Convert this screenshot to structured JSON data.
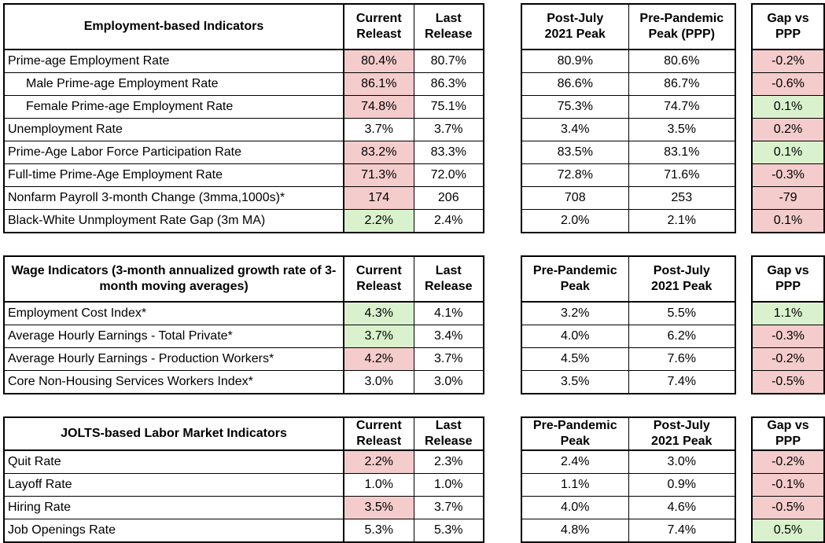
{
  "colors": {
    "worse_bg": "#f4cccc",
    "better_bg": "#d9f2cd",
    "border": "#000000"
  },
  "chart_data": [
    {
      "type": "table",
      "title": "Employment-based Indicators",
      "main_headers": [
        "Current\nReleast",
        "Last\nRelease"
      ],
      "peak_headers": [
        "Post-July\n2021 Peak",
        "Pre-Pandemic\nPeak (PPP)"
      ],
      "gap_header": "Gap vs\nPPP",
      "rows": [
        {
          "label": "Prime-age Employment Rate",
          "indent": false,
          "current": "80.4%",
          "current_bg": "red",
          "last": "80.7%",
          "peak1": "80.9%",
          "peak2": "80.6%",
          "gap": "-0.2%",
          "gap_bg": "red"
        },
        {
          "label": "Male Prime-age Employment Rate",
          "indent": true,
          "current": "86.1%",
          "current_bg": "red",
          "last": "86.3%",
          "peak1": "86.6%",
          "peak2": "86.7%",
          "gap": "-0.6%",
          "gap_bg": "red"
        },
        {
          "label": "Female Prime-age Employment Rate",
          "indent": true,
          "current": "74.8%",
          "current_bg": "red",
          "last": "75.1%",
          "peak1": "75.3%",
          "peak2": "74.7%",
          "gap": "0.1%",
          "gap_bg": "green"
        },
        {
          "label": "Unemployment Rate",
          "indent": false,
          "current": "3.7%",
          "current_bg": null,
          "last": "3.7%",
          "peak1": "3.4%",
          "peak2": "3.5%",
          "gap": "0.2%",
          "gap_bg": "red"
        },
        {
          "label": "Prime-Age Labor Force Participation Rate",
          "indent": false,
          "current": "83.2%",
          "current_bg": "red",
          "last": "83.3%",
          "peak1": "83.5%",
          "peak2": "83.1%",
          "gap": "0.1%",
          "gap_bg": "green"
        },
        {
          "label": "Full-time Prime-Age Employment Rate",
          "indent": false,
          "current": "71.3%",
          "current_bg": "red",
          "last": "72.0%",
          "peak1": "72.8%",
          "peak2": "71.6%",
          "gap": "-0.3%",
          "gap_bg": "red"
        },
        {
          "label": "Nonfarm Payroll 3-month Change (3mma,1000s)*",
          "indent": false,
          "current": "174",
          "current_bg": "red",
          "last": "206",
          "peak1": "708",
          "peak2": "253",
          "gap": "-79",
          "gap_bg": "red"
        },
        {
          "label": "Black-White Unmployment Rate Gap (3m MA)",
          "indent": false,
          "current": "2.2%",
          "current_bg": "green",
          "last": "2.4%",
          "peak1": "2.0%",
          "peak2": "2.1%",
          "gap": "0.1%",
          "gap_bg": "red"
        }
      ]
    },
    {
      "type": "table",
      "title": "Wage Indicators (3-month annualized growth rate of 3-month moving averages)",
      "main_headers": [
        "Current\nReleast",
        "Last\nRelease"
      ],
      "peak_headers": [
        "Pre-Pandemic\nPeak",
        "Post-July\n2021 Peak"
      ],
      "gap_header": "Gap vs\nPPP",
      "rows": [
        {
          "label": "Employment Cost Index*",
          "indent": false,
          "current": "4.3%",
          "current_bg": "green",
          "last": "4.1%",
          "peak1": "3.2%",
          "peak2": "5.5%",
          "gap": "1.1%",
          "gap_bg": "green"
        },
        {
          "label": "Average Hourly Earnings - Total Private*",
          "indent": false,
          "current": "3.7%",
          "current_bg": "green",
          "last": "3.4%",
          "peak1": "4.0%",
          "peak2": "6.2%",
          "gap": "-0.3%",
          "gap_bg": "red"
        },
        {
          "label": "Average Hourly Earnings - Production Workers*",
          "indent": false,
          "current": "4.2%",
          "current_bg": "red",
          "last": "3.7%",
          "peak1": "4.5%",
          "peak2": "7.6%",
          "gap": "-0.2%",
          "gap_bg": "red"
        },
        {
          "label": "Core Non-Housing Services Workers Index*",
          "indent": false,
          "current": "3.0%",
          "current_bg": null,
          "last": "3.0%",
          "peak1": "3.5%",
          "peak2": "7.4%",
          "gap": "-0.5%",
          "gap_bg": "red"
        }
      ]
    },
    {
      "type": "table",
      "title": "JOLTS-based Labor Market Indicators",
      "main_headers": [
        "Current\nReleast",
        "Last\nRelease"
      ],
      "peak_headers": [
        "Pre-Pandemic\nPeak",
        "Post-July\n2021 Peak"
      ],
      "gap_header": "Gap vs\nPPP",
      "rows": [
        {
          "label": "Quit Rate",
          "indent": false,
          "current": "2.2%",
          "current_bg": "red",
          "last": "2.3%",
          "peak1": "2.4%",
          "peak2": "3.0%",
          "gap": "-0.2%",
          "gap_bg": "red"
        },
        {
          "label": "Layoff Rate",
          "indent": false,
          "current": "1.0%",
          "current_bg": null,
          "last": "1.0%",
          "peak1": "1.1%",
          "peak2": "0.9%",
          "gap": "-0.1%",
          "gap_bg": "red"
        },
        {
          "label": "Hiring Rate",
          "indent": false,
          "current": "3.5%",
          "current_bg": "red",
          "last": "3.7%",
          "peak1": "4.0%",
          "peak2": "4.6%",
          "gap": "-0.5%",
          "gap_bg": "red"
        },
        {
          "label": "Job Openings Rate",
          "indent": false,
          "current": "5.3%",
          "current_bg": null,
          "last": "5.3%",
          "peak1": "4.8%",
          "peak2": "7.4%",
          "gap": "0.5%",
          "gap_bg": "green"
        }
      ]
    }
  ]
}
